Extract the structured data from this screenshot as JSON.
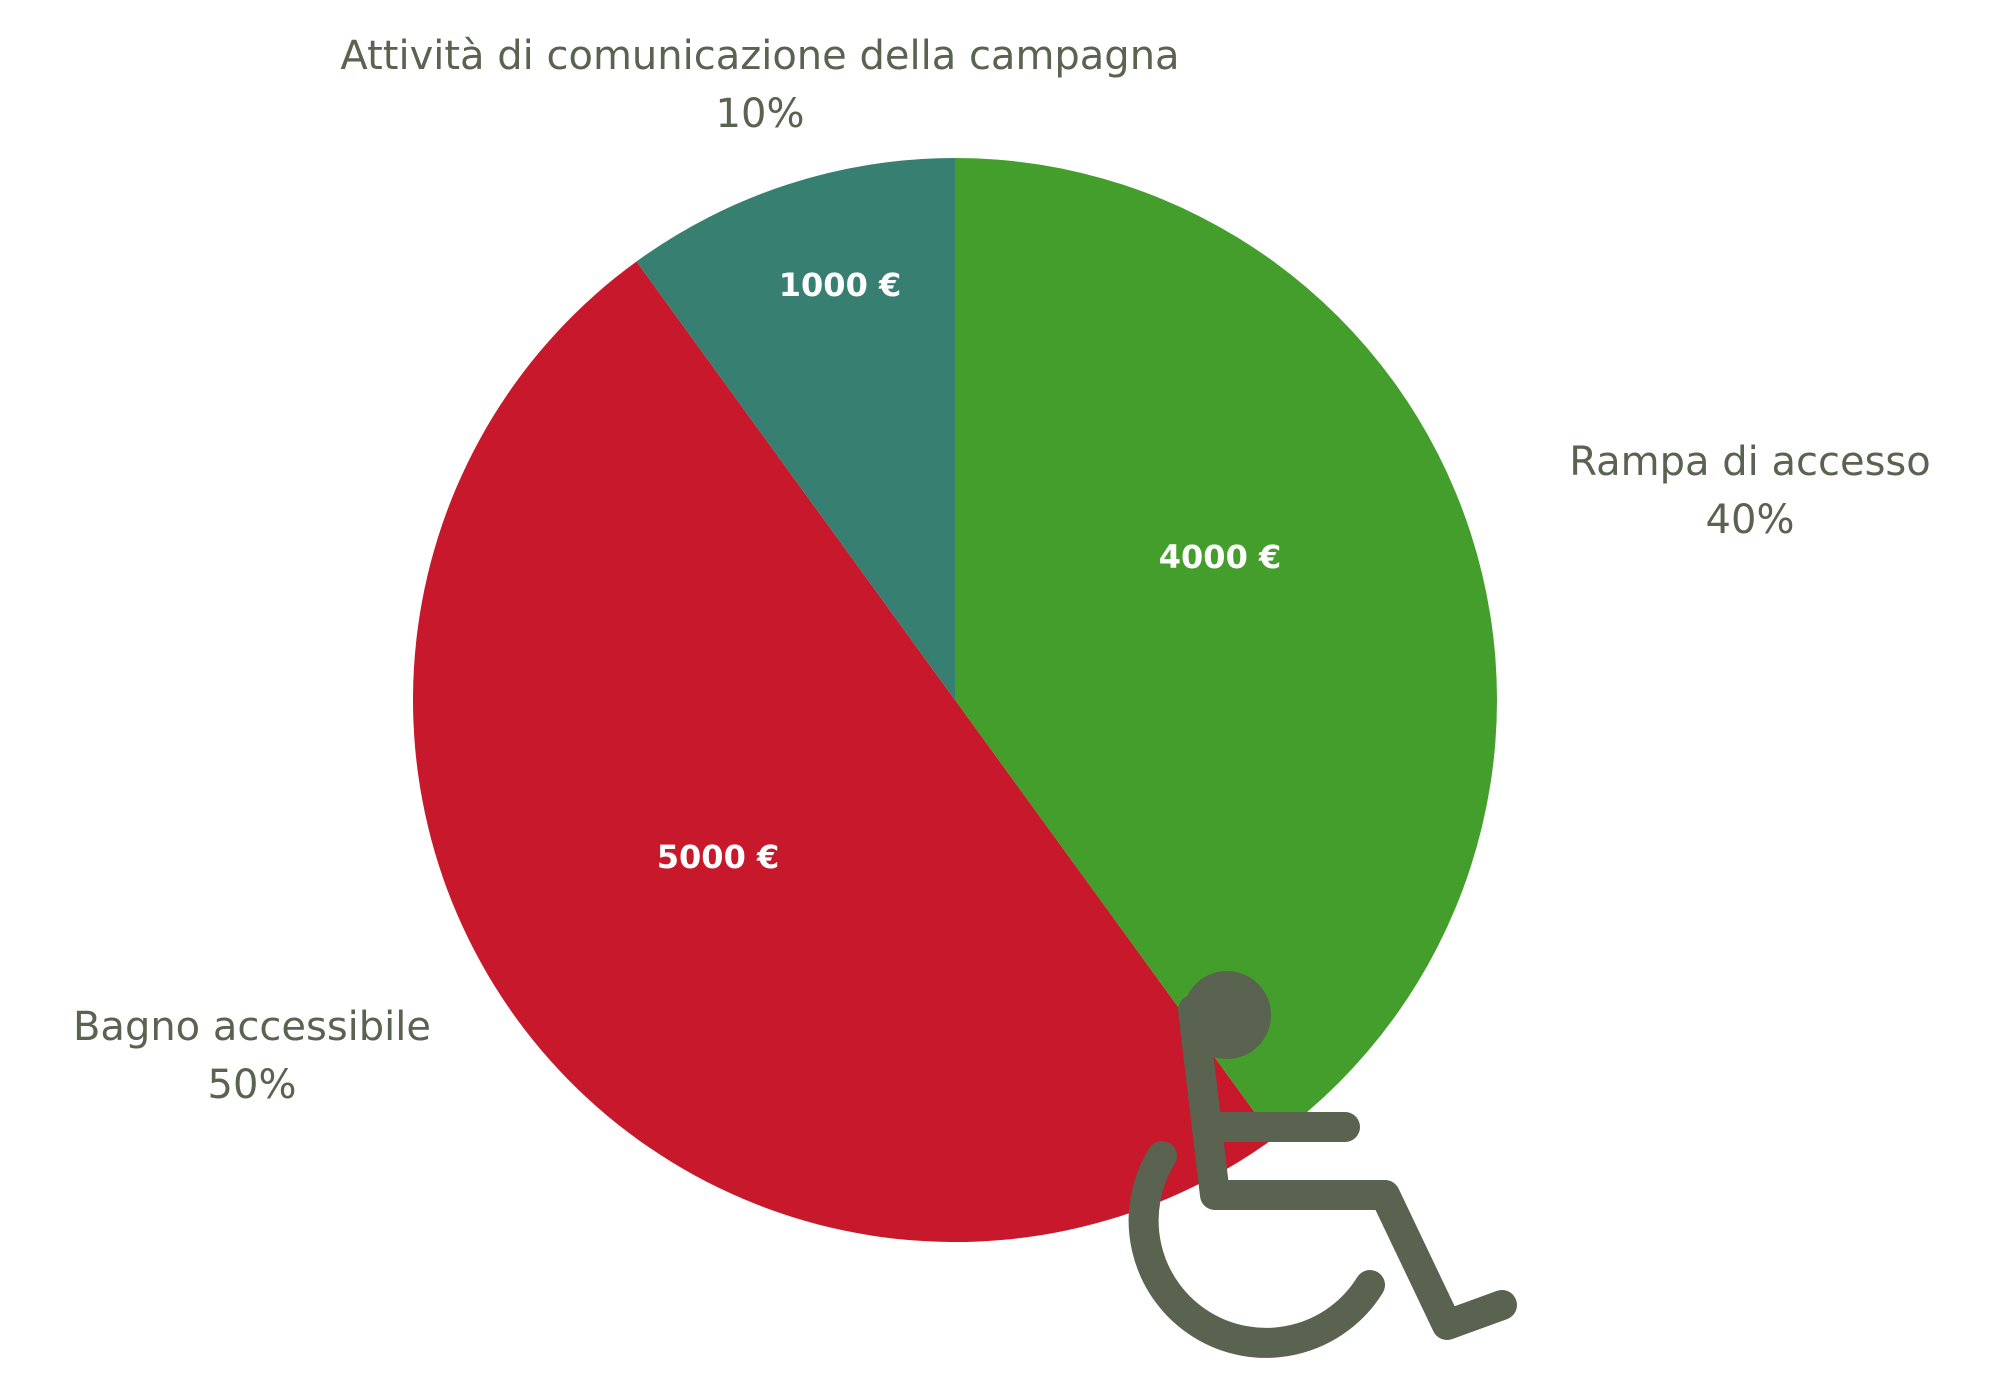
{
  "colors": {
    "text": "#5a6250",
    "icon": "#5a6250",
    "inner_text": "#ffffff"
  },
  "icon": {
    "name": "wheelchair-icon"
  },
  "chart_data": {
    "type": "pie",
    "start_angle_deg": 0,
    "direction": "clockwise",
    "slices": [
      {
        "label": "Rampa di accesso",
        "percent_label": "40%",
        "value": 4000,
        "value_label": "4000 €",
        "color": "#439e2b"
      },
      {
        "label": "Bagno accessibile",
        "percent_label": "50%",
        "value": 5000,
        "value_label": "5000 €",
        "color": "#c8182b"
      },
      {
        "label": "Attività di comunicazione della campagna",
        "percent_label": "10%",
        "value": 1000,
        "value_label": "1000 €",
        "color": "#377f71"
      }
    ]
  }
}
